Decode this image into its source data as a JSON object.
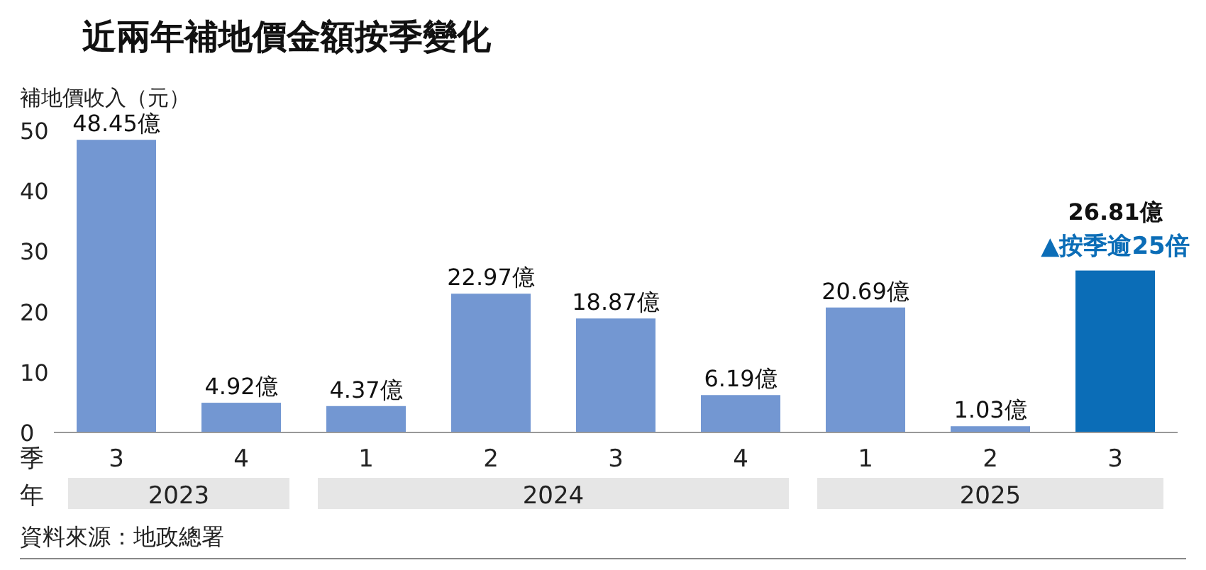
{
  "chart_data": {
    "type": "bar",
    "title": "近兩年補地價金額按季變化",
    "ylabel": "補地價收入（元）",
    "xlabel": "季",
    "categories": [
      "3",
      "4",
      "1",
      "2",
      "3",
      "4",
      "1",
      "2",
      "3"
    ],
    "values": [
      48.45,
      4.92,
      4.37,
      22.97,
      18.87,
      6.19,
      20.69,
      1.03,
      26.81
    ],
    "colors": [
      "#7397d2",
      "#7397d2",
      "#7397d2",
      "#7397d2",
      "#7397d2",
      "#7397d2",
      "#7397d2",
      "#7397d2",
      "#0b6db7"
    ],
    "value_labels": [
      "48.45億",
      "4.92億",
      "4.37億",
      "22.97億",
      "18.87億",
      "6.19億",
      "20.69億",
      "1.03億",
      "26.81億"
    ],
    "ylim": [
      0,
      50
    ],
    "yticks": [
      0,
      10,
      20,
      30,
      40,
      50
    ],
    "grid": false,
    "annotations": [
      "年",
      "2023",
      "2024",
      "2025",
      "資料來源：地政總署",
      "▲按季逾25倍"
    ]
  }
}
